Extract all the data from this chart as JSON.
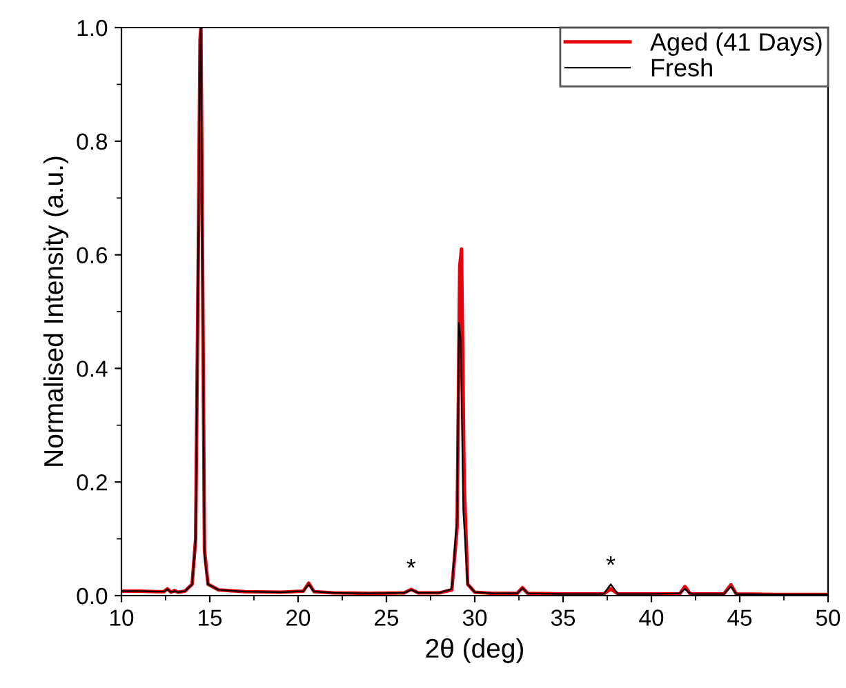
{
  "chart_data": {
    "type": "line",
    "xlabel": "2θ (deg)",
    "ylabel": "Normalised Intensity (a.u.)",
    "xlim": [
      10,
      50
    ],
    "ylim": [
      0,
      1.0
    ],
    "xticks": [
      10,
      15,
      20,
      25,
      30,
      35,
      40,
      45,
      50
    ],
    "yticks": [
      {
        "value": 0,
        "label": "0.0"
      },
      {
        "value": 0.2,
        "label": "0.2"
      },
      {
        "value": 0.4,
        "label": "0.4"
      },
      {
        "value": 0.6,
        "label": "0.6"
      },
      {
        "value": 0.8,
        "label": "0.8"
      },
      {
        "value": 1,
        "label": "1.0"
      }
    ],
    "series": [
      {
        "name": "Aged (41 Days)",
        "color": "#e8000b",
        "x": [
          10,
          11,
          12,
          12.4,
          12.6,
          12.8,
          13.0,
          13.2,
          13.6,
          14.0,
          14.2,
          14.35,
          14.45,
          14.5,
          14.6,
          14.7,
          14.9,
          15.5,
          17,
          19,
          20.3,
          20.6,
          20.9,
          22,
          24,
          26.0,
          26.4,
          26.8,
          28,
          28.7,
          29.0,
          29.15,
          29.25,
          29.4,
          29.6,
          30,
          31,
          32.4,
          32.7,
          33.0,
          35,
          37.3,
          37.7,
          38.1,
          40,
          41.6,
          41.9,
          42.2,
          44.1,
          44.5,
          44.8,
          47,
          50
        ],
        "values": [
          0.008,
          0.008,
          0.007,
          0.007,
          0.012,
          0.006,
          0.009,
          0.006,
          0.008,
          0.02,
          0.1,
          0.6,
          0.98,
          1.0,
          0.55,
          0.08,
          0.02,
          0.01,
          0.007,
          0.006,
          0.008,
          0.022,
          0.007,
          0.005,
          0.004,
          0.005,
          0.011,
          0.005,
          0.005,
          0.01,
          0.12,
          0.58,
          0.61,
          0.2,
          0.02,
          0.006,
          0.004,
          0.004,
          0.014,
          0.004,
          0.003,
          0.003,
          0.012,
          0.003,
          0.003,
          0.003,
          0.016,
          0.003,
          0.003,
          0.019,
          0.003,
          0.002,
          0.002
        ]
      },
      {
        "name": "Fresh",
        "color": "#000000",
        "x": [
          10,
          11,
          12,
          12.4,
          12.6,
          12.8,
          13.0,
          13.2,
          13.6,
          14.0,
          14.2,
          14.35,
          14.45,
          14.5,
          14.6,
          14.7,
          14.9,
          15.5,
          17,
          19,
          20.3,
          20.6,
          20.9,
          22,
          24,
          26.0,
          26.4,
          26.8,
          28,
          28.7,
          29.0,
          29.1,
          29.2,
          29.35,
          29.6,
          30,
          31,
          32.4,
          32.7,
          33.0,
          35,
          37.3,
          37.7,
          38.1,
          40,
          41.6,
          41.9,
          42.2,
          44.1,
          44.5,
          44.8,
          47,
          50
        ],
        "values": [
          0.008,
          0.008,
          0.007,
          0.007,
          0.011,
          0.006,
          0.008,
          0.006,
          0.008,
          0.02,
          0.1,
          0.62,
          0.97,
          1.0,
          0.5,
          0.07,
          0.02,
          0.01,
          0.007,
          0.006,
          0.008,
          0.02,
          0.007,
          0.005,
          0.004,
          0.005,
          0.01,
          0.005,
          0.005,
          0.012,
          0.14,
          0.48,
          0.45,
          0.15,
          0.02,
          0.006,
          0.004,
          0.004,
          0.013,
          0.004,
          0.003,
          0.003,
          0.02,
          0.003,
          0.003,
          0.004,
          0.012,
          0.003,
          0.003,
          0.016,
          0.003,
          0.002,
          0.002
        ]
      }
    ],
    "legend": "top right",
    "grid": false,
    "marker": "none",
    "line_style": "solid",
    "annotations": [
      {
        "text": "*",
        "x": 26.4,
        "y": 0.025
      },
      {
        "text": "*",
        "x": 37.7,
        "y": 0.03
      }
    ]
  }
}
